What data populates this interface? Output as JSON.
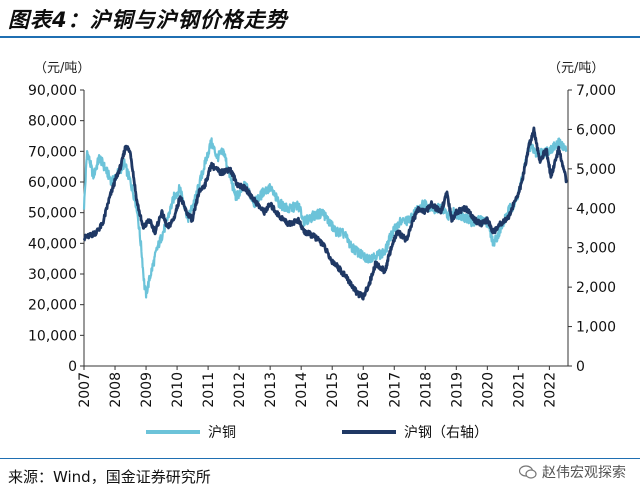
{
  "figure": {
    "title": "图表4：沪铜与沪钢价格走势",
    "source": "来源：Wind，国金证券研究所",
    "watermark": "赵伟宏观探索"
  },
  "chart_data": {
    "type": "line",
    "x_ticks": [
      "2007",
      "2008",
      "2009",
      "2010",
      "2011",
      "2012",
      "2013",
      "2014",
      "2015",
      "2016",
      "2017",
      "2018",
      "2019",
      "2020",
      "2021",
      "2022"
    ],
    "xlim": [
      2007.0,
      2022.6
    ],
    "left_axis": {
      "unit": "（元/吨）",
      "ylim": [
        0,
        90000
      ],
      "ticks": [
        "90,000",
        "80,000",
        "70,000",
        "60,000",
        "50,000",
        "40,000",
        "30,000",
        "20,000",
        "10,000",
        "0"
      ]
    },
    "right_axis": {
      "unit": "（元/吨）",
      "ylim": [
        0,
        7000
      ],
      "ticks": [
        "7,000",
        "6,000",
        "5,000",
        "4,000",
        "3,000",
        "2,000",
        "1,000",
        "0"
      ]
    },
    "series": [
      {
        "name": "沪铜",
        "axis": "left",
        "color": "#6cc3d9",
        "points": [
          [
            2007.0,
            52000
          ],
          [
            2007.1,
            70000
          ],
          [
            2007.3,
            62000
          ],
          [
            2007.5,
            68000
          ],
          [
            2007.7,
            64000
          ],
          [
            2007.9,
            60000
          ],
          [
            2008.1,
            63000
          ],
          [
            2008.3,
            66000
          ],
          [
            2008.5,
            60000
          ],
          [
            2008.7,
            52000
          ],
          [
            2008.85,
            38000
          ],
          [
            2008.95,
            26000
          ],
          [
            2009.0,
            23500
          ],
          [
            2009.15,
            30000
          ],
          [
            2009.35,
            38000
          ],
          [
            2009.6,
            45000
          ],
          [
            2009.9,
            55000
          ],
          [
            2010.1,
            58000
          ],
          [
            2010.35,
            48000
          ],
          [
            2010.6,
            55000
          ],
          [
            2010.9,
            66000
          ],
          [
            2011.1,
            73000
          ],
          [
            2011.3,
            68000
          ],
          [
            2011.5,
            70000
          ],
          [
            2011.7,
            62000
          ],
          [
            2011.9,
            55000
          ],
          [
            2012.2,
            59000
          ],
          [
            2012.5,
            53000
          ],
          [
            2012.8,
            57000
          ],
          [
            2013.0,
            58000
          ],
          [
            2013.3,
            53000
          ],
          [
            2013.6,
            51000
          ],
          [
            2013.9,
            52500
          ],
          [
            2014.1,
            47000
          ],
          [
            2014.4,
            49000
          ],
          [
            2014.7,
            50000
          ],
          [
            2014.9,
            47000
          ],
          [
            2015.1,
            44000
          ],
          [
            2015.4,
            43000
          ],
          [
            2015.6,
            39000
          ],
          [
            2015.9,
            36500
          ],
          [
            2016.1,
            35000
          ],
          [
            2016.4,
            36000
          ],
          [
            2016.7,
            37000
          ],
          [
            2016.9,
            43000
          ],
          [
            2017.2,
            47000
          ],
          [
            2017.5,
            47500
          ],
          [
            2017.8,
            52000
          ],
          [
            2018.0,
            53000
          ],
          [
            2018.3,
            51000
          ],
          [
            2018.5,
            52000
          ],
          [
            2018.7,
            49000
          ],
          [
            2018.9,
            50000
          ],
          [
            2019.2,
            49000
          ],
          [
            2019.5,
            47000
          ],
          [
            2019.8,
            47500
          ],
          [
            2020.0,
            47000
          ],
          [
            2020.2,
            40000
          ],
          [
            2020.4,
            44000
          ],
          [
            2020.7,
            51000
          ],
          [
            2020.9,
            53000
          ],
          [
            2021.1,
            60000
          ],
          [
            2021.35,
            72000
          ],
          [
            2021.6,
            69000
          ],
          [
            2021.9,
            70000
          ],
          [
            2022.1,
            71000
          ],
          [
            2022.35,
            73000
          ],
          [
            2022.55,
            70000
          ]
        ]
      },
      {
        "name": "沪钢（右轴）",
        "axis": "right",
        "color": "#1f3864",
        "points": [
          [
            2007.0,
            3250
          ],
          [
            2007.2,
            3300
          ],
          [
            2007.4,
            3400
          ],
          [
            2007.6,
            3600
          ],
          [
            2007.8,
            4200
          ],
          [
            2008.0,
            4700
          ],
          [
            2008.2,
            5100
          ],
          [
            2008.35,
            5600
          ],
          [
            2008.5,
            5400
          ],
          [
            2008.7,
            4200
          ],
          [
            2008.9,
            3500
          ],
          [
            2009.1,
            3700
          ],
          [
            2009.3,
            3400
          ],
          [
            2009.5,
            3900
          ],
          [
            2009.7,
            3500
          ],
          [
            2009.9,
            3750
          ],
          [
            2010.1,
            4300
          ],
          [
            2010.3,
            3900
          ],
          [
            2010.5,
            3700
          ],
          [
            2010.7,
            4400
          ],
          [
            2010.9,
            4600
          ],
          [
            2011.1,
            5100
          ],
          [
            2011.4,
            4900
          ],
          [
            2011.7,
            5000
          ],
          [
            2011.95,
            4600
          ],
          [
            2012.2,
            4500
          ],
          [
            2012.5,
            4200
          ],
          [
            2012.8,
            3900
          ],
          [
            2013.0,
            4100
          ],
          [
            2013.3,
            3800
          ],
          [
            2013.6,
            3600
          ],
          [
            2013.9,
            3700
          ],
          [
            2014.1,
            3400
          ],
          [
            2014.4,
            3300
          ],
          [
            2014.7,
            3100
          ],
          [
            2014.95,
            2700
          ],
          [
            2015.2,
            2500
          ],
          [
            2015.5,
            2200
          ],
          [
            2015.8,
            1850
          ],
          [
            2016.0,
            1750
          ],
          [
            2016.2,
            2100
          ],
          [
            2016.4,
            2600
          ],
          [
            2016.7,
            2400
          ],
          [
            2016.9,
            3000
          ],
          [
            2017.1,
            3400
          ],
          [
            2017.4,
            3200
          ],
          [
            2017.6,
            3700
          ],
          [
            2017.8,
            4000
          ],
          [
            2018.0,
            3900
          ],
          [
            2018.2,
            4100
          ],
          [
            2018.5,
            3900
          ],
          [
            2018.7,
            4400
          ],
          [
            2018.85,
            3700
          ],
          [
            2019.0,
            3900
          ],
          [
            2019.3,
            4000
          ],
          [
            2019.6,
            3700
          ],
          [
            2019.8,
            3600
          ],
          [
            2020.0,
            3700
          ],
          [
            2020.2,
            3400
          ],
          [
            2020.4,
            3600
          ],
          [
            2020.7,
            3800
          ],
          [
            2020.9,
            4200
          ],
          [
            2021.1,
            4600
          ],
          [
            2021.35,
            5600
          ],
          [
            2021.5,
            6000
          ],
          [
            2021.7,
            5200
          ],
          [
            2021.9,
            5500
          ],
          [
            2022.05,
            4800
          ],
          [
            2022.3,
            5500
          ],
          [
            2022.45,
            5000
          ],
          [
            2022.55,
            4700
          ]
        ]
      }
    ]
  }
}
